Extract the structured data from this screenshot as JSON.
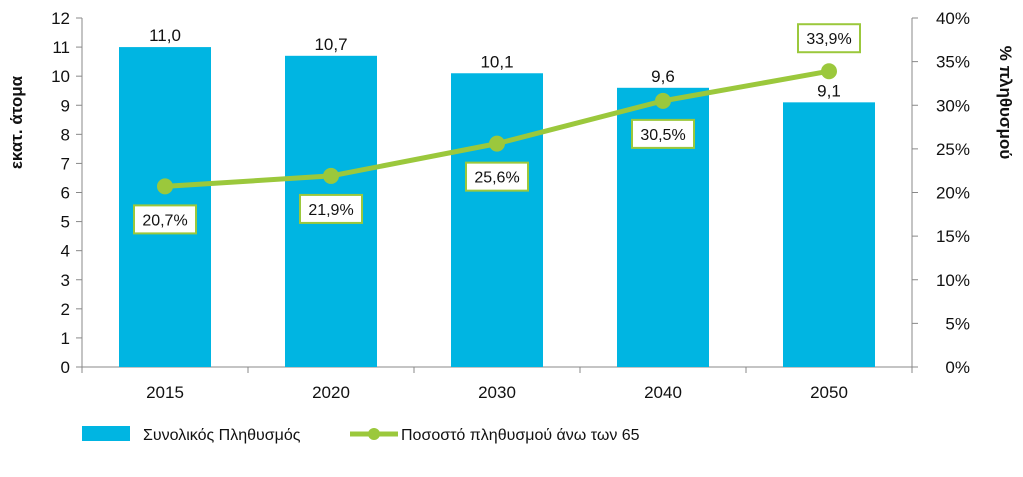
{
  "chart_data": {
    "type": "bar",
    "categories": [
      "2015",
      "2020",
      "2030",
      "2040",
      "2050"
    ],
    "series": [
      {
        "name": "Συνολικός Πληθυσμός",
        "kind": "bar",
        "axis": "left",
        "color": "#00B5E2",
        "values": [
          11.0,
          10.7,
          10.1,
          9.6,
          9.1
        ],
        "labels": [
          "11,0",
          "10,7",
          "10,1",
          "9,6",
          "9,1"
        ]
      },
      {
        "name": "Ποσοστό πληθυσμού άνω των 65",
        "kind": "line",
        "axis": "right",
        "color": "#9BC83C",
        "values": [
          20.7,
          21.9,
          25.6,
          30.5,
          33.9
        ],
        "labels": [
          "20,7%",
          "21,9%",
          "25,6%",
          "30,5%",
          "33,9%"
        ]
      }
    ],
    "ylabel": "εκατ. άτομα",
    "y2label": "% πληθυσμού",
    "ylim": [
      0,
      12
    ],
    "y2lim": [
      0,
      40
    ],
    "yticks": [
      "0",
      "1",
      "2",
      "3",
      "4",
      "5",
      "6",
      "7",
      "8",
      "9",
      "10",
      "11",
      "12"
    ],
    "y2ticks": [
      "0%",
      "5%",
      "10%",
      "15%",
      "20%",
      "25%",
      "30%",
      "35%",
      "40%"
    ],
    "grid": false,
    "legend_position": "bottom-left",
    "label_positions": [
      "below",
      "below",
      "below",
      "below",
      "above"
    ]
  }
}
